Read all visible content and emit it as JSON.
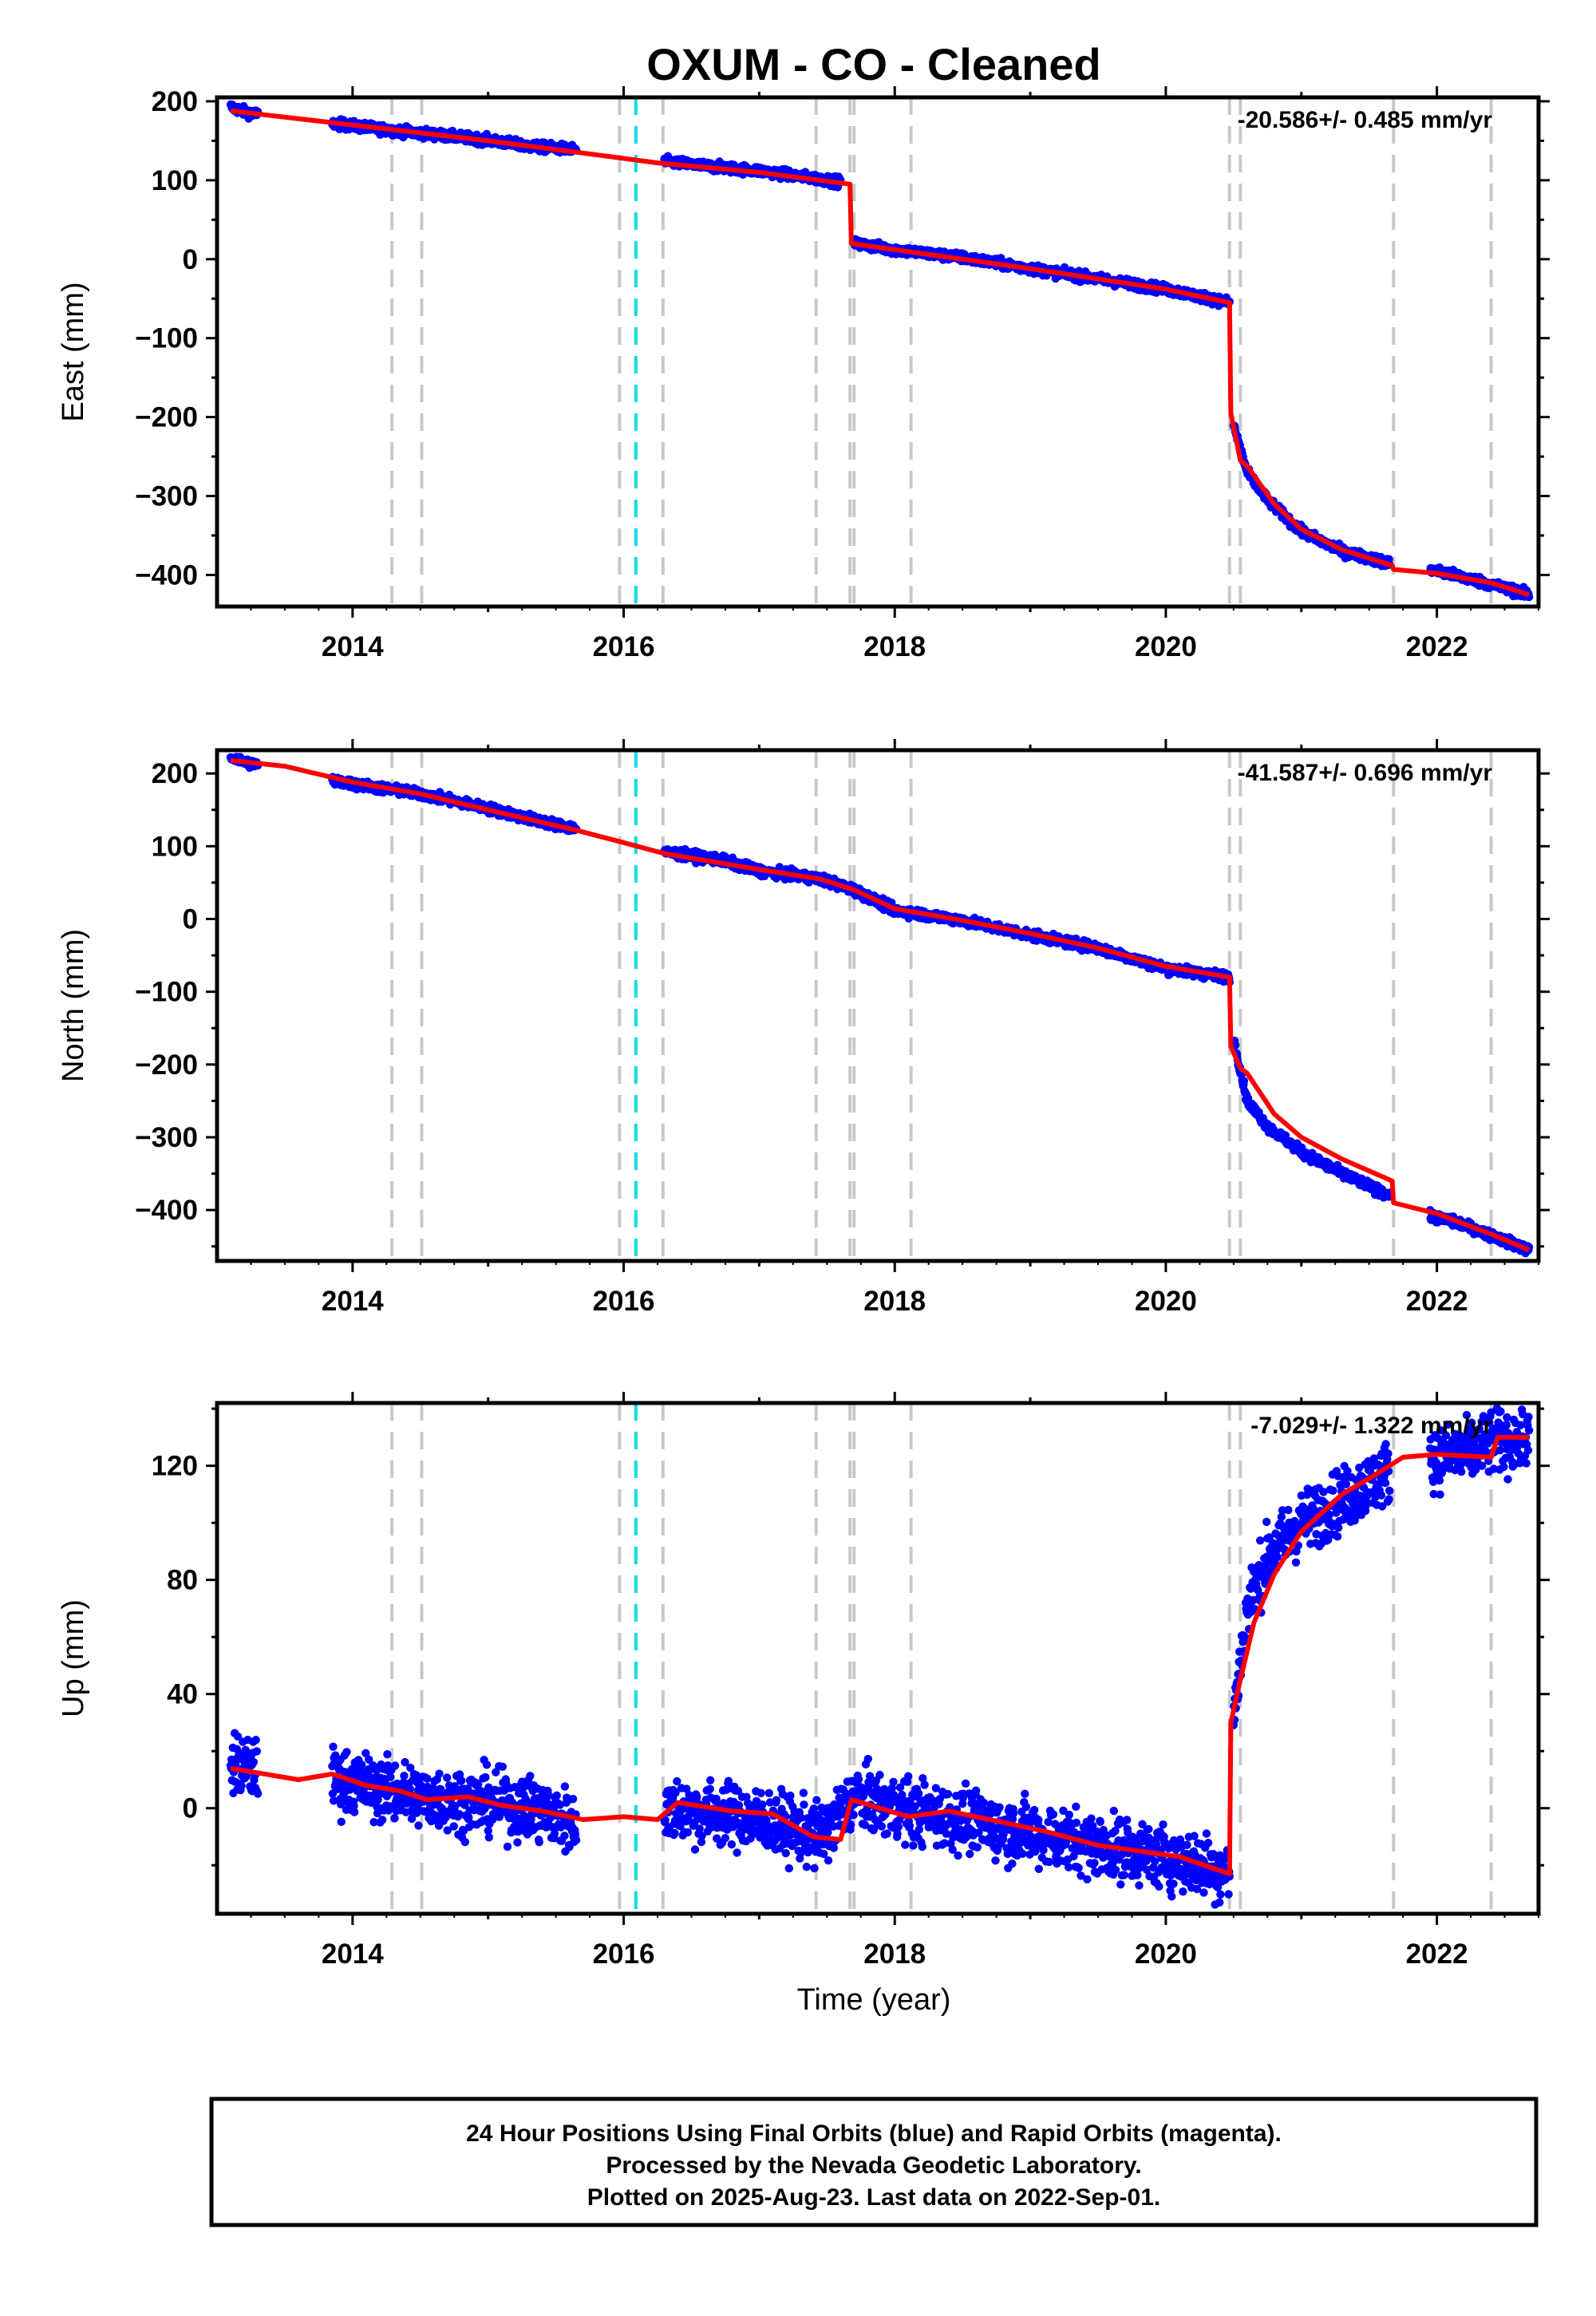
{
  "title": "OXUM  - CO - Cleaned",
  "xlabel": "Time (year)",
  "xlim": [
    2013.0,
    2022.75
  ],
  "x_ticks": [
    2014,
    2016,
    2018,
    2020,
    2022
  ],
  "colors": {
    "data": "#0000ff",
    "model": "#ff0000",
    "event": "#c8c8c8",
    "equipment_change": "#00e0e0"
  },
  "event_lines": [
    2014.29,
    2014.51,
    2015.97,
    2016.29,
    2017.42,
    2017.67,
    2017.7,
    2018.12,
    2020.47,
    2020.55,
    2021.68,
    2022.4
  ],
  "equipment_change": [
    2016.09
  ],
  "footer": {
    "line1": "24 Hour Positions Using Final Orbits (blue) and Rapid Orbits (magenta).",
    "line2": "Processed by the Nevada Geodetic Laboratory.",
    "line3": "Plotted on 2025-Aug-23. Last data on 2022-Sep-01."
  },
  "chart_data": [
    {
      "type": "scatter",
      "ylabel": "East (mm)",
      "ylim": [
        -440,
        205
      ],
      "y_ticks": [
        200,
        100,
        0,
        -100,
        -200,
        -300,
        -400
      ],
      "rate_text": "-20.586+/- 0.485 mm/yr",
      "series": [
        {
          "role": "data",
          "segments": [
            {
              "x": [
                2013.1,
                2013.2,
                2013.3
              ],
              "y": [
                193,
                187,
                183
              ]
            },
            {
              "x": [
                2013.85,
                2014.0,
                2014.3,
                2014.6,
                2015.0,
                2015.3,
                2015.65
              ],
              "y": [
                172,
                169,
                163,
                158,
                151,
                143,
                139
              ]
            },
            {
              "x": [
                2016.3,
                2016.6,
                2017.0,
                2017.3,
                2017.6
              ],
              "y": [
                124,
                118,
                112,
                105,
                98
              ]
            },
            {
              "x": [
                2017.7,
                2018.0,
                2018.5,
                2019.0,
                2019.5,
                2020.0,
                2020.47
              ],
              "y": [
                20,
                12,
                2,
                -12,
                -25,
                -38,
                -55
              ]
            },
            {
              "x": [
                2020.5,
                2020.6,
                2020.75,
                2021.0,
                2021.3,
                2021.65
              ],
              "y": [
                -210,
                -270,
                -305,
                -345,
                -370,
                -385
              ]
            },
            {
              "x": [
                2021.95,
                2022.2,
                2022.4,
                2022.68
              ],
              "y": [
                -393,
                -403,
                -412,
                -425
              ]
            }
          ]
        },
        {
          "role": "model",
          "x": [
            2013.1,
            2013.4,
            2014.0,
            2015.0,
            2015.9,
            2016.25,
            2017.0,
            2017.67,
            2017.68,
            2018.0,
            2019.0,
            2020.0,
            2020.47,
            2020.48,
            2020.55,
            2020.6,
            2020.8,
            2021.0,
            2021.3,
            2021.67,
            2021.68,
            2022.0,
            2022.4,
            2022.68
          ],
          "y": [
            188,
            182,
            170,
            150,
            130,
            122,
            110,
            95,
            20,
            12,
            -12,
            -38,
            -55,
            -195,
            -255,
            -262,
            -310,
            -342,
            -368,
            -388,
            -393,
            -398,
            -410,
            -425
          ]
        }
      ]
    },
    {
      "type": "scatter",
      "ylabel": "North (mm)",
      "ylim": [
        -470,
        232
      ],
      "y_ticks": [
        200,
        100,
        0,
        -100,
        -200,
        -300,
        -400
      ],
      "rate_text": "-41.587+/- 0.696 mm/yr",
      "series": [
        {
          "role": "data",
          "segments": [
            {
              "x": [
                2013.1,
                2013.2,
                2013.3
              ],
              "y": [
                222,
                216,
                212
              ]
            },
            {
              "x": [
                2013.85,
                2014.2,
                2014.5,
                2015.0,
                2015.3,
                2015.65
              ],
              "y": [
                190,
                180,
                172,
                152,
                138,
                124
              ]
            },
            {
              "x": [
                2016.3,
                2016.7,
                2017.0,
                2017.45,
                2017.7,
                2018.0,
                2018.5,
                2019.0,
                2019.5,
                2020.0,
                2020.47
              ],
              "y": [
                92,
                82,
                66,
                55,
                40,
                12,
                -2,
                -22,
                -40,
                -68,
                -80
              ]
            },
            {
              "x": [
                2020.5,
                2020.6,
                2020.75,
                2021.0,
                2021.3,
                2021.65
              ],
              "y": [
                -165,
                -250,
                -285,
                -320,
                -350,
                -380
              ]
            },
            {
              "x": [
                2021.95,
                2022.2,
                2022.4,
                2022.68
              ],
              "y": [
                -408,
                -420,
                -435,
                -455
              ]
            }
          ]
        },
        {
          "role": "model",
          "x": [
            2013.1,
            2013.5,
            2014.0,
            2014.5,
            2015.0,
            2015.65,
            2016.0,
            2016.3,
            2017.0,
            2017.45,
            2017.7,
            2018.0,
            2018.5,
            2019.0,
            2019.5,
            2020.0,
            2020.47,
            2020.48,
            2020.55,
            2020.6,
            2020.8,
            2021.0,
            2021.3,
            2021.67,
            2021.68,
            2022.0,
            2022.4,
            2022.68
          ],
          "y": [
            218,
            210,
            188,
            172,
            150,
            122,
            105,
            90,
            68,
            55,
            40,
            14,
            -2,
            -20,
            -40,
            -65,
            -80,
            -175,
            -205,
            -212,
            -268,
            -300,
            -330,
            -360,
            -390,
            -405,
            -433,
            -455
          ]
        }
      ]
    },
    {
      "type": "scatter",
      "ylabel": "Up (mm)",
      "ylim": [
        -37,
        142
      ],
      "y_ticks": [
        120,
        80,
        40,
        0
      ],
      "rate_text": "-7.029+/- 1.322 mm/yr",
      "series": [
        {
          "role": "data",
          "segments": [
            {
              "x": [
                2013.1,
                2013.2,
                2013.3
              ],
              "y": [
                16,
                14,
                14
              ]
            },
            {
              "x": [
                2013.85,
                2014.2,
                2014.5,
                2015.0,
                2015.3,
                2015.65
              ],
              "y": [
                10,
                7,
                4,
                2,
                0,
                -5
              ]
            },
            {
              "x": [
                2016.3,
                2016.7,
                2017.0,
                2017.45,
                2017.7,
                2018.0,
                2018.5,
                2019.0,
                2019.5,
                2020.0,
                2020.47
              ],
              "y": [
                0,
                -2,
                -4,
                -10,
                4,
                0,
                -4,
                -9,
                -13,
                -17,
                -22
              ]
            },
            {
              "x": [
                2020.5,
                2020.6,
                2020.75,
                2021.0,
                2021.3,
                2021.65
              ],
              "y": [
                32,
                70,
                88,
                100,
                108,
                118
              ]
            },
            {
              "x": [
                2021.95,
                2022.2,
                2022.4,
                2022.68
              ],
              "y": [
                123,
                124,
                128,
                130
              ]
            }
          ]
        },
        {
          "role": "model",
          "x": [
            2013.1,
            2013.35,
            2013.6,
            2013.85,
            2014.1,
            2014.35,
            2014.55,
            2014.85,
            2015.1,
            2015.4,
            2015.7,
            2016.0,
            2016.25,
            2016.4,
            2016.8,
            2017.1,
            2017.4,
            2017.6,
            2017.68,
            2018.1,
            2018.4,
            2018.8,
            2019.1,
            2019.5,
            2019.8,
            2020.1,
            2020.47,
            2020.48,
            2020.55,
            2020.65,
            2020.8,
            2021.0,
            2021.3,
            2021.55,
            2021.75,
            2022.0,
            2022.4,
            2022.45,
            2022.68
          ],
          "y": [
            14,
            12,
            10,
            12,
            8,
            6,
            3,
            4,
            1,
            -1,
            -4,
            -3,
            -4,
            2,
            -1,
            -2,
            -10,
            -11,
            3,
            -3,
            -1,
            -5,
            -8,
            -13,
            -15,
            -17,
            -23,
            30,
            45,
            65,
            82,
            97,
            110,
            117,
            123,
            124,
            123,
            130,
            130
          ]
        }
      ]
    }
  ]
}
